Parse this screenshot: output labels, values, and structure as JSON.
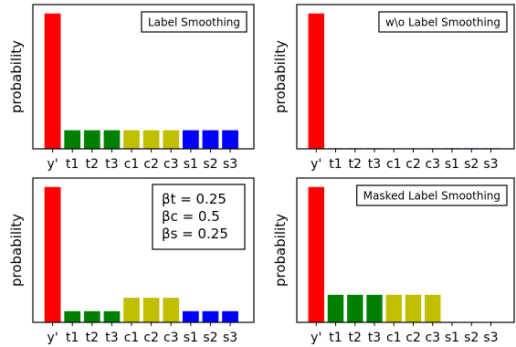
{
  "chart_data": [
    {
      "type": "bar",
      "legend": "Label Smoothing",
      "ylabel": "probability",
      "categories": [
        "y'",
        "t1",
        "t2",
        "t3",
        "c1",
        "c2",
        "c3",
        "s1",
        "s2",
        "s3"
      ],
      "values": [
        0.91,
        0.125,
        0.125,
        0.125,
        0.125,
        0.125,
        0.125,
        0.125,
        0.125,
        0.125
      ],
      "colors": [
        "#ff0000",
        "#008000",
        "#008000",
        "#008000",
        "#bfbf00",
        "#bfbf00",
        "#bfbf00",
        "#0000ff",
        "#0000ff",
        "#0000ff"
      ],
      "ylim": [
        0,
        0.97
      ],
      "annotation_lines": []
    },
    {
      "type": "bar",
      "legend": "w\\o Label Smoothing",
      "ylabel": "probability",
      "categories": [
        "y'",
        "t1",
        "t2",
        "t3",
        "c1",
        "c2",
        "c3",
        "s1",
        "s2",
        "s3"
      ],
      "values": [
        0.91,
        0.004,
        0.004,
        0.004,
        0.004,
        0.004,
        0.004,
        0.004,
        0.004,
        0.004
      ],
      "colors": [
        "#ff0000",
        "#008000",
        "#008000",
        "#008000",
        "#bfbf00",
        "#bfbf00",
        "#bfbf00",
        "#0000ff",
        "#0000ff",
        "#0000ff"
      ],
      "ylim": [
        0,
        0.97
      ],
      "annotation_lines": []
    },
    {
      "type": "bar",
      "legend": "",
      "ylabel": "probability",
      "categories": [
        "y'",
        "t1",
        "t2",
        "t3",
        "c1",
        "c2",
        "c3",
        "s1",
        "s2",
        "s3"
      ],
      "values": [
        0.91,
        0.075,
        0.075,
        0.075,
        0.165,
        0.165,
        0.165,
        0.075,
        0.075,
        0.075
      ],
      "colors": [
        "#ff0000",
        "#008000",
        "#008000",
        "#008000",
        "#bfbf00",
        "#bfbf00",
        "#bfbf00",
        "#0000ff",
        "#0000ff",
        "#0000ff"
      ],
      "ylim": [
        0,
        0.97
      ],
      "annotation_lines": [
        "βt = 0.25",
        "βc = 0.5",
        "βs = 0.25"
      ]
    },
    {
      "type": "bar",
      "legend": "Masked Label Smoothing",
      "ylabel": "probability",
      "categories": [
        "y'",
        "t1",
        "t2",
        "t3",
        "c1",
        "c2",
        "c3",
        "s1",
        "s2",
        "s3"
      ],
      "values": [
        0.91,
        0.185,
        0.185,
        0.185,
        0.185,
        0.185,
        0.185,
        0.0,
        0.0,
        0.0
      ],
      "colors": [
        "#ff0000",
        "#008000",
        "#008000",
        "#008000",
        "#bfbf00",
        "#bfbf00",
        "#bfbf00",
        "#0000ff",
        "#0000ff",
        "#0000ff"
      ],
      "ylim": [
        0,
        0.97
      ],
      "annotation_lines": []
    }
  ]
}
